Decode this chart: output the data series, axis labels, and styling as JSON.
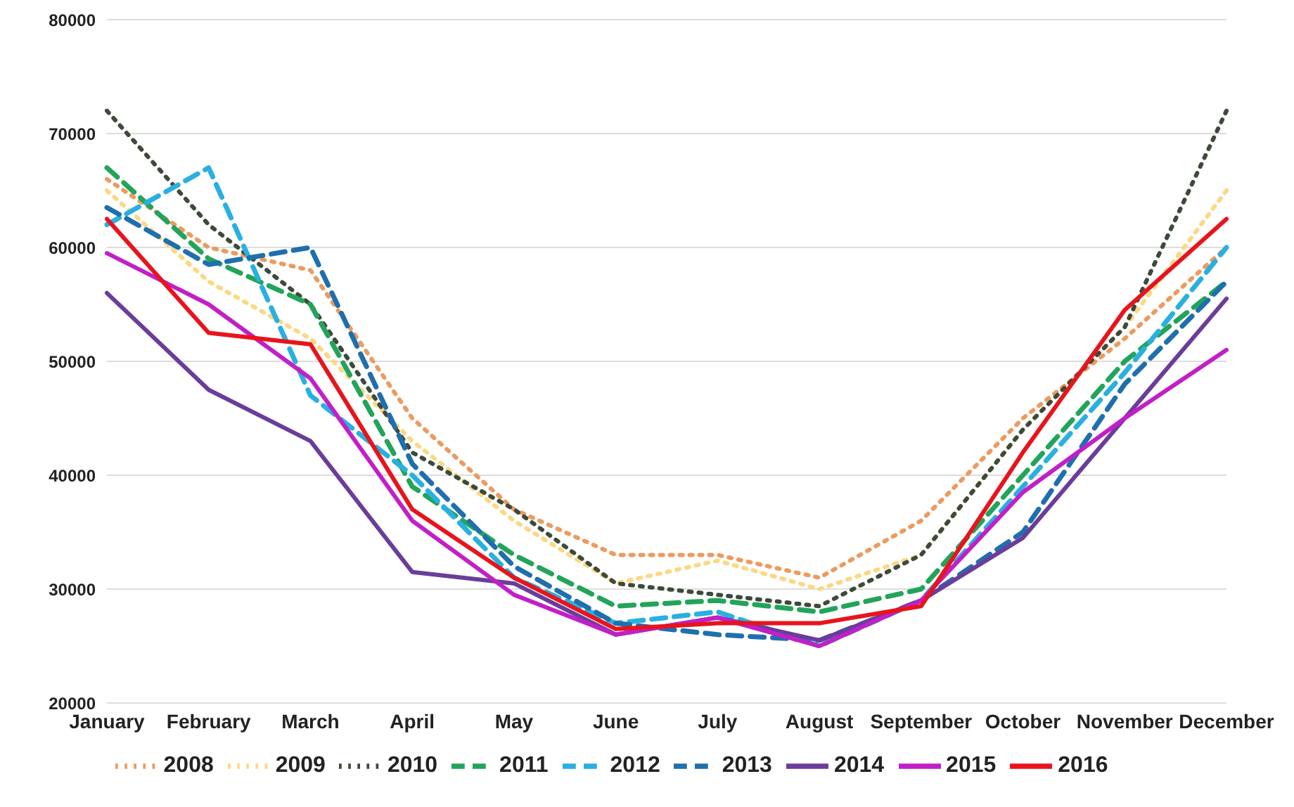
{
  "chart_data": {
    "type": "line",
    "categories": [
      "January",
      "February",
      "March",
      "April",
      "May",
      "June",
      "July",
      "August",
      "September",
      "October",
      "November",
      "December"
    ],
    "ylim": [
      20000,
      80000
    ],
    "yticks": [
      20000,
      30000,
      40000,
      50000,
      60000,
      70000,
      80000
    ],
    "grid": "y",
    "legend": "bottom",
    "marker": "none",
    "series": [
      {
        "name": "2008",
        "color": "#ed9a5f",
        "line_style": "dotted",
        "values": [
          66000,
          60000,
          58000,
          45000,
          37000,
          33000,
          33000,
          31000,
          36000,
          45000,
          52000,
          60000
        ]
      },
      {
        "name": "2009",
        "color": "#fcd882",
        "line_style": "dotted",
        "values": [
          65000,
          57000,
          52000,
          43000,
          36000,
          30500,
          32500,
          30000,
          33000,
          44000,
          53000,
          65000
        ]
      },
      {
        "name": "2010",
        "color": "#3d4a3a",
        "line_style": "dotted",
        "values": [
          72000,
          62000,
          55000,
          42000,
          37000,
          30500,
          29500,
          28500,
          33000,
          44000,
          53000,
          72000
        ]
      },
      {
        "name": "2011",
        "color": "#22a45a",
        "line_style": "dashed",
        "values": [
          67000,
          59000,
          55000,
          39000,
          33000,
          28500,
          29000,
          28000,
          30000,
          40000,
          50000,
          57000
        ]
      },
      {
        "name": "2012",
        "color": "#29b0e0",
        "line_style": "dashed",
        "values": [
          62000,
          67000,
          47000,
          40000,
          31000,
          27000,
          28000,
          25000,
          29000,
          39000,
          49000,
          60000
        ]
      },
      {
        "name": "2013",
        "color": "#1f6fae",
        "line_style": "dashed",
        "values": [
          63500,
          58500,
          60000,
          41000,
          32000,
          27000,
          26000,
          25500,
          29000,
          35000,
          48000,
          57000
        ]
      },
      {
        "name": "2014",
        "color": "#6a3d9a",
        "line_style": "solid",
        "values": [
          56000,
          47500,
          43000,
          31500,
          30500,
          26000,
          27500,
          25500,
          29000,
          34500,
          45000,
          55500
        ]
      },
      {
        "name": "2015",
        "color": "#c21fc8",
        "line_style": "solid",
        "values": [
          59500,
          55000,
          48500,
          36000,
          29500,
          26000,
          27500,
          25000,
          29000,
          38500,
          45000,
          51000
        ]
      },
      {
        "name": "2016",
        "color": "#e8141b",
        "line_style": "solid",
        "values": [
          62500,
          52500,
          51500,
          37000,
          31000,
          26500,
          27000,
          27000,
          28500,
          42000,
          54500,
          62500
        ]
      }
    ]
  }
}
